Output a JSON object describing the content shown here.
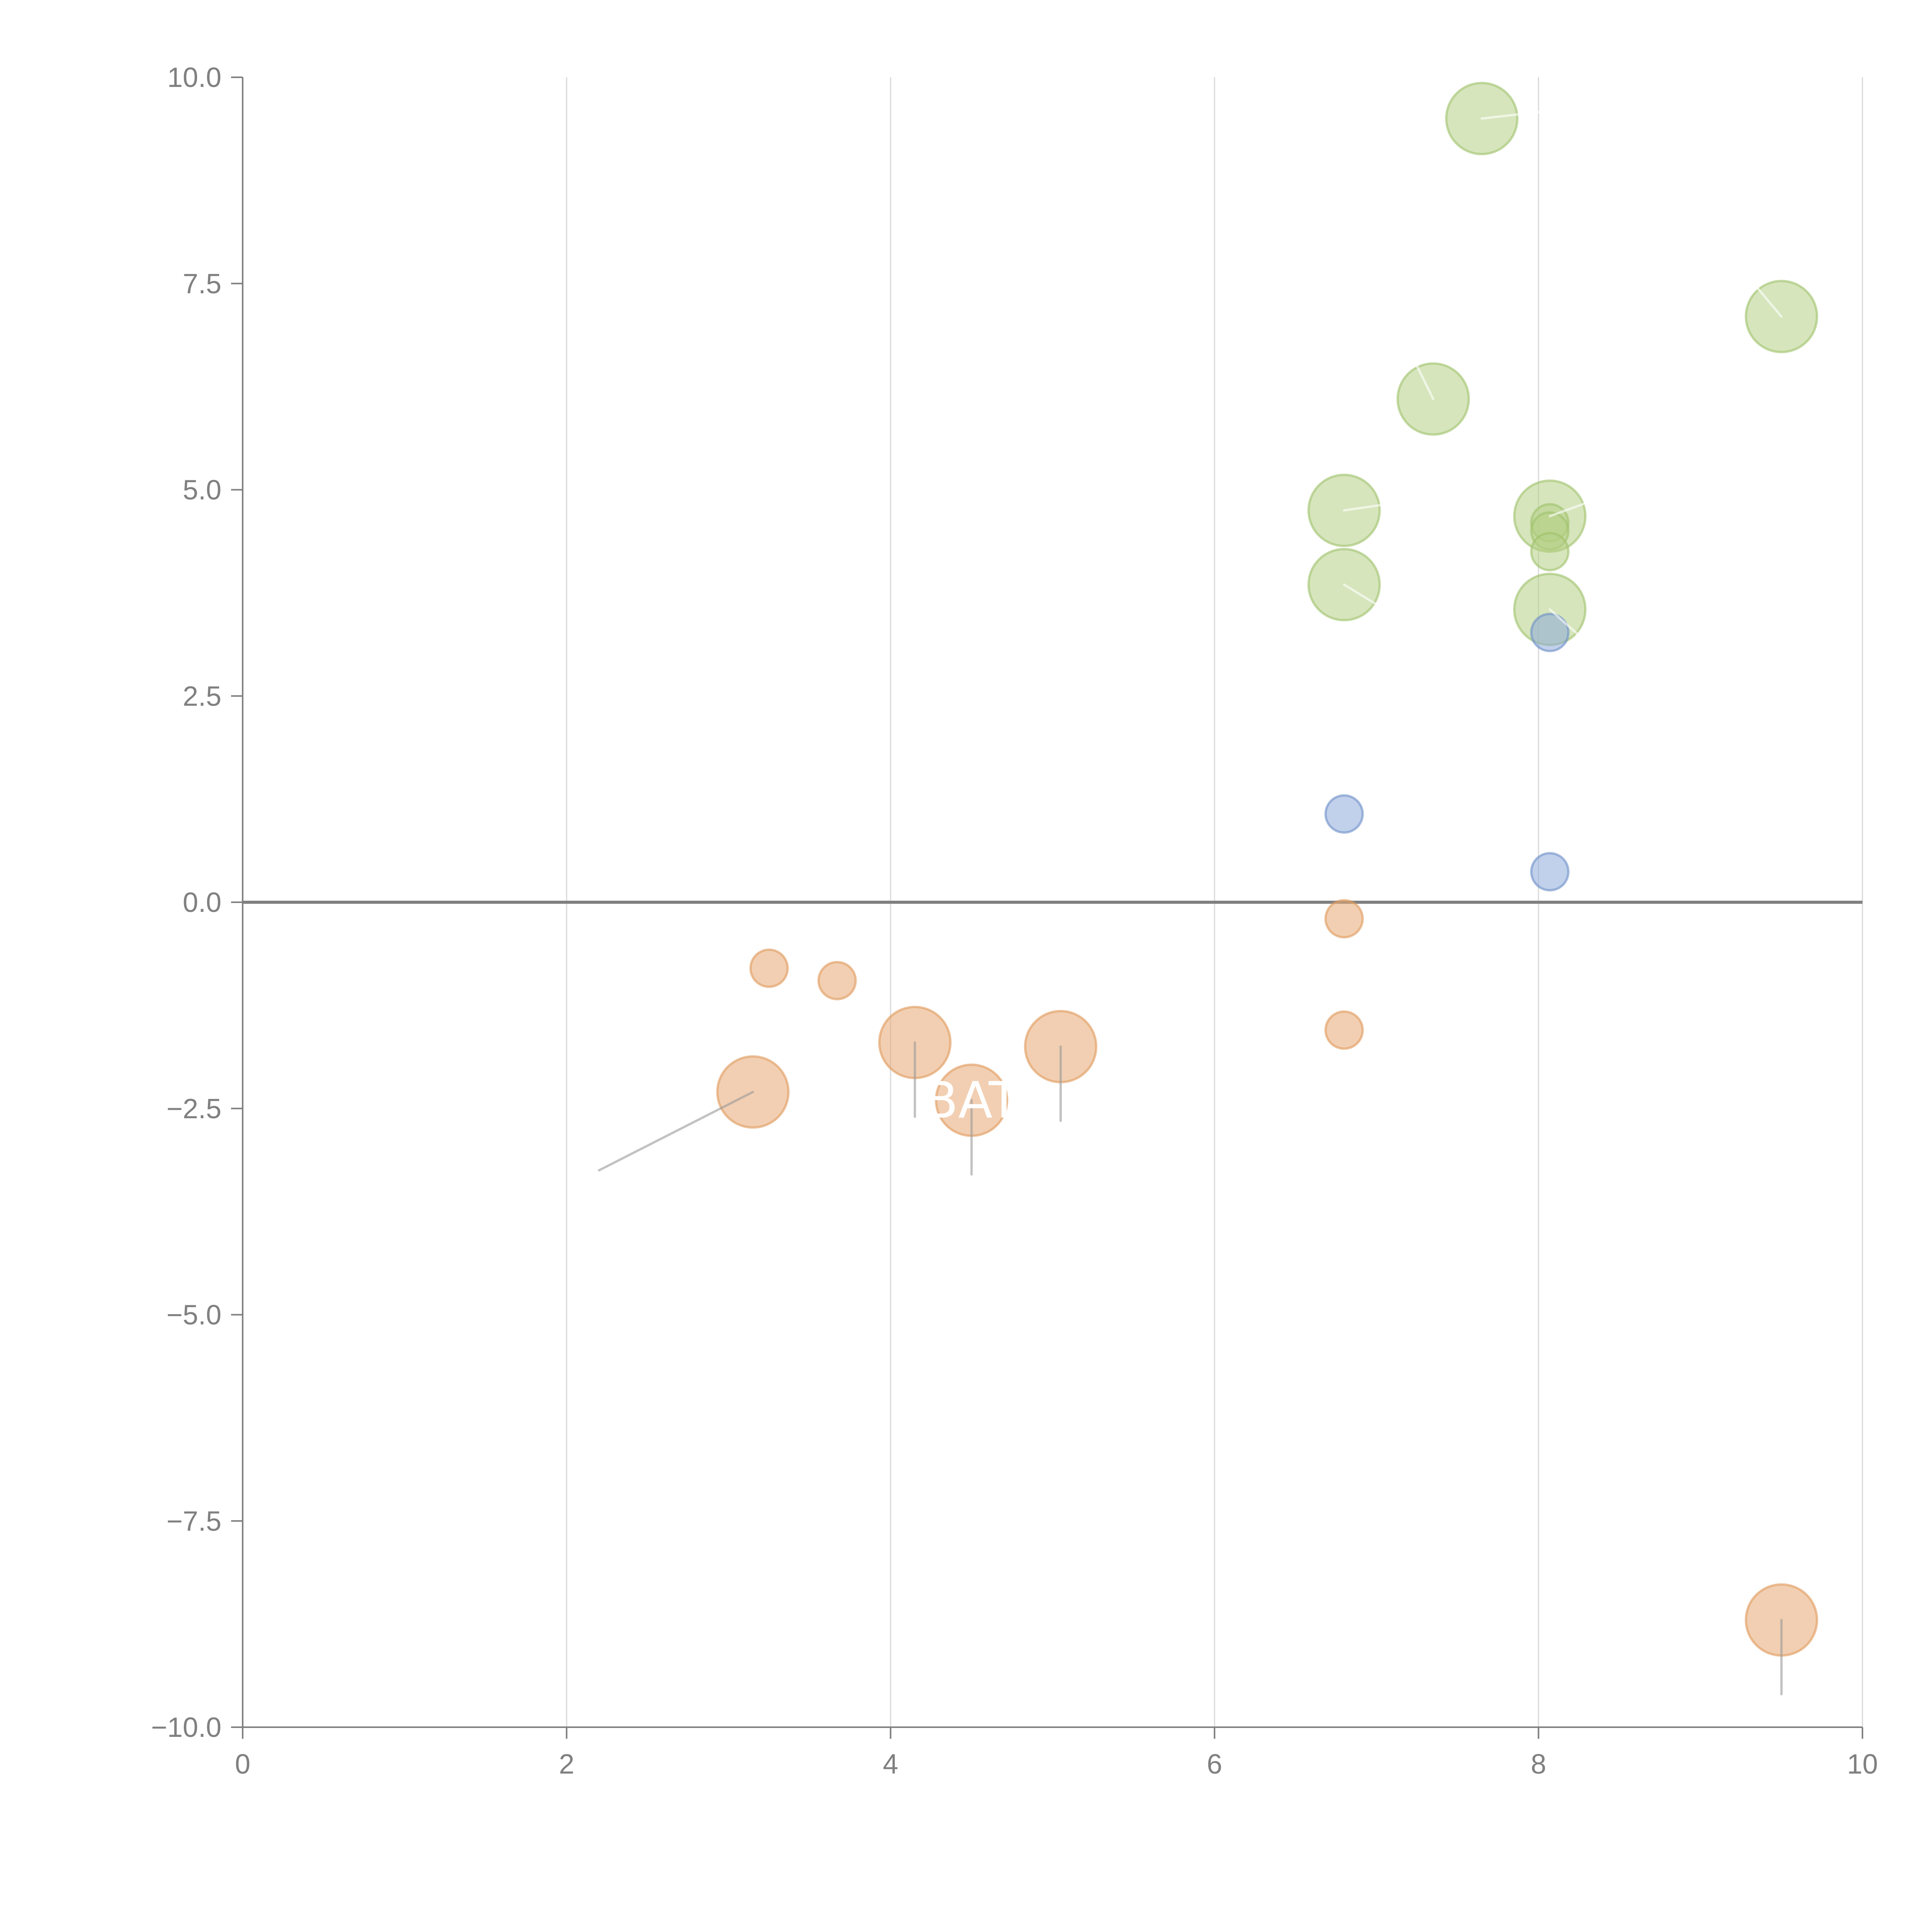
{
  "chart_data": {
    "type": "scatter",
    "title": "",
    "xlabel": "",
    "ylabel": "",
    "xlim": [
      0,
      10
    ],
    "ylim": [
      -10,
      10
    ],
    "x_ticks": [
      "0",
      "2",
      "4",
      "6",
      "8",
      "10"
    ],
    "y_ticks": [
      "−10.0",
      "−7.5",
      "−5.0",
      "−2.5",
      "0.0",
      "2.5",
      "5.0",
      "7.5",
      "10.0"
    ],
    "x_tick_values": [
      0,
      2,
      4,
      6,
      8,
      10
    ],
    "y_tick_values": [
      -10,
      -7.5,
      -5,
      -2.5,
      0,
      2.5,
      5,
      7.5,
      10
    ],
    "grid": "vertical",
    "zero_line": true,
    "series": [
      {
        "name": "green",
        "color": "#b5cf85",
        "stroke": "#9fc26a",
        "points": [
          {
            "x": 7.65,
            "y": 9.5,
            "size": "large",
            "leader": [
              0.45,
              0.1
            ]
          },
          {
            "x": 9.5,
            "y": 7.1,
            "size": "large",
            "leader": [
              -0.15,
              0.35
            ]
          },
          {
            "x": 7.35,
            "y": 6.1,
            "size": "large",
            "leader": [
              -0.1,
              0.4
            ]
          },
          {
            "x": 6.8,
            "y": 4.75,
            "size": "large",
            "leader": [
              0.35,
              0.1
            ]
          },
          {
            "x": 6.8,
            "y": 3.85,
            "size": "large",
            "leader": [
              0.25,
              -0.3
            ]
          },
          {
            "x": 8.07,
            "y": 4.68,
            "size": "large",
            "leader": [
              0.35,
              0.25
            ]
          },
          {
            "x": 8.07,
            "y": 4.6,
            "size": "small"
          },
          {
            "x": 8.07,
            "y": 4.5,
            "size": "small"
          },
          {
            "x": 8.07,
            "y": 4.25,
            "size": "small"
          },
          {
            "x": 8.07,
            "y": 3.55,
            "size": "large",
            "leader": [
              0.2,
              -0.35
            ]
          }
        ]
      },
      {
        "name": "blue",
        "color": "#8eaadb",
        "stroke": "#6d8fc8",
        "points": [
          {
            "x": 8.07,
            "y": 3.27,
            "size": "small"
          },
          {
            "x": 6.8,
            "y": 1.07,
            "size": "small"
          },
          {
            "x": 8.07,
            "y": 0.37,
            "size": "small"
          }
        ]
      },
      {
        "name": "orange",
        "color": "#e8a872",
        "stroke": "#e09a5c",
        "points": [
          {
            "x": 6.8,
            "y": -0.2,
            "size": "small"
          },
          {
            "x": 6.8,
            "y": -1.55,
            "size": "small"
          },
          {
            "x": 3.25,
            "y": -0.8,
            "size": "small"
          },
          {
            "x": 3.67,
            "y": -0.95,
            "size": "small"
          },
          {
            "x": 4.15,
            "y": -1.7,
            "size": "large",
            "leader": [
              0,
              -0.9
            ]
          },
          {
            "x": 5.05,
            "y": -1.75,
            "size": "large",
            "leader": [
              0,
              -0.9
            ]
          },
          {
            "x": 4.5,
            "y": -2.4,
            "size": "large",
            "leader": [
              0,
              -0.9
            ],
            "label": "BAT"
          },
          {
            "x": 3.15,
            "y": -2.3,
            "size": "large",
            "leader": [
              -0.95,
              -0.95
            ]
          },
          {
            "x": 9.5,
            "y": -8.7,
            "size": "large",
            "leader": [
              0,
              -0.9
            ]
          }
        ]
      }
    ]
  }
}
